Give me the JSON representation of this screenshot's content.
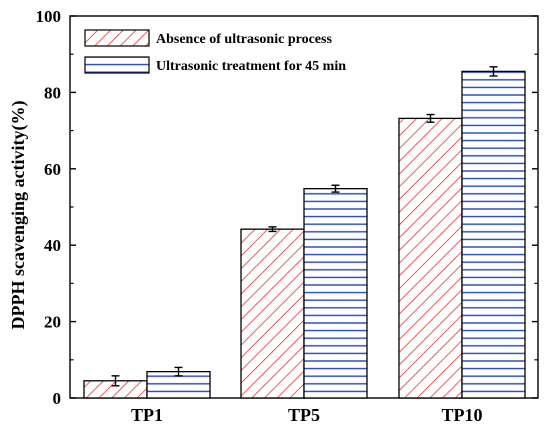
{
  "chart_data": {
    "type": "bar",
    "title": "",
    "xlabel": "",
    "ylabel": "DPPH scavenging activity(%)",
    "ylim": [
      0,
      100
    ],
    "yticks": [
      0,
      20,
      40,
      60,
      80,
      100
    ],
    "categories": [
      "TP1",
      "TP5",
      "TP10"
    ],
    "series": [
      {
        "name": "Absence of ultrasonic process",
        "values": [
          4.5,
          44.2,
          73.2
        ],
        "errors": [
          1.3,
          0.6,
          1.0
        ],
        "color": "#e8322d",
        "pattern": "diagonal-hatch"
      },
      {
        "name": "Ultrasonic treatment for 45 min",
        "values": [
          6.9,
          54.8,
          85.5
        ],
        "errors": [
          1.1,
          0.9,
          1.2
        ],
        "color": "#2446b8",
        "pattern": "horizontal-lines"
      }
    ],
    "legend_position": "top-left",
    "grid": false
  }
}
